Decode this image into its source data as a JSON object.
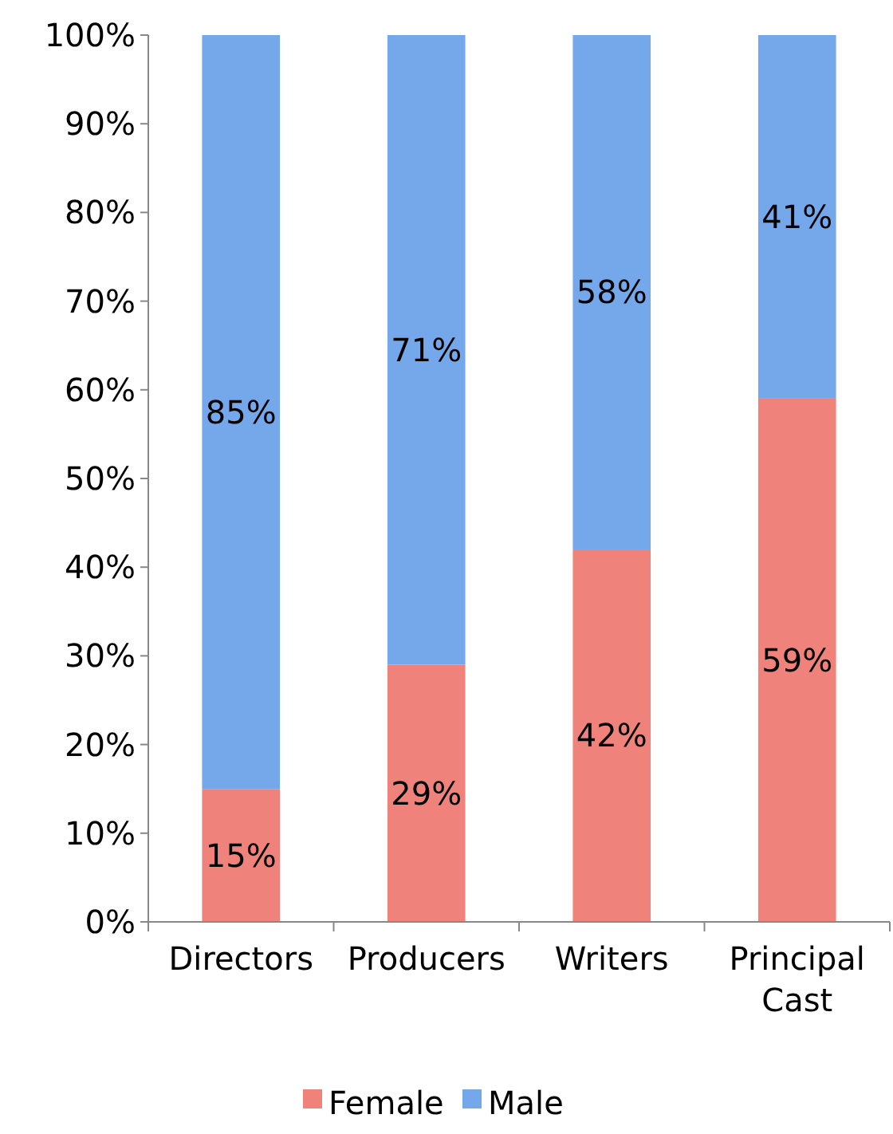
{
  "chart_data": {
    "type": "bar",
    "stacked": true,
    "categories": [
      "Directors",
      "Producers",
      "Writers",
      "Principal Cast"
    ],
    "series": [
      {
        "name": "Female",
        "color": "#f0827c",
        "values": [
          15,
          29,
          42,
          59
        ],
        "value_labels": [
          "15%",
          "29%",
          "42%",
          "59%"
        ]
      },
      {
        "name": "Male",
        "color": "#74a8ea",
        "values": [
          85,
          71,
          58,
          41
        ],
        "value_labels": [
          "85%",
          "71%",
          "58%",
          "41%"
        ]
      }
    ],
    "ylim": [
      0,
      100
    ],
    "yticks": [
      {
        "value": 0,
        "label": "0%"
      },
      {
        "value": 10,
        "label": "10%"
      },
      {
        "value": 20,
        "label": "20%"
      },
      {
        "value": 30,
        "label": "30%"
      },
      {
        "value": 40,
        "label": "40%"
      },
      {
        "value": 50,
        "label": "50%"
      },
      {
        "value": 60,
        "label": "60%"
      },
      {
        "value": 70,
        "label": "70%"
      },
      {
        "value": 80,
        "label": "80%"
      },
      {
        "value": 90,
        "label": "90%"
      },
      {
        "value": 100,
        "label": "100%"
      }
    ],
    "grid": false,
    "legend": "bottom"
  }
}
